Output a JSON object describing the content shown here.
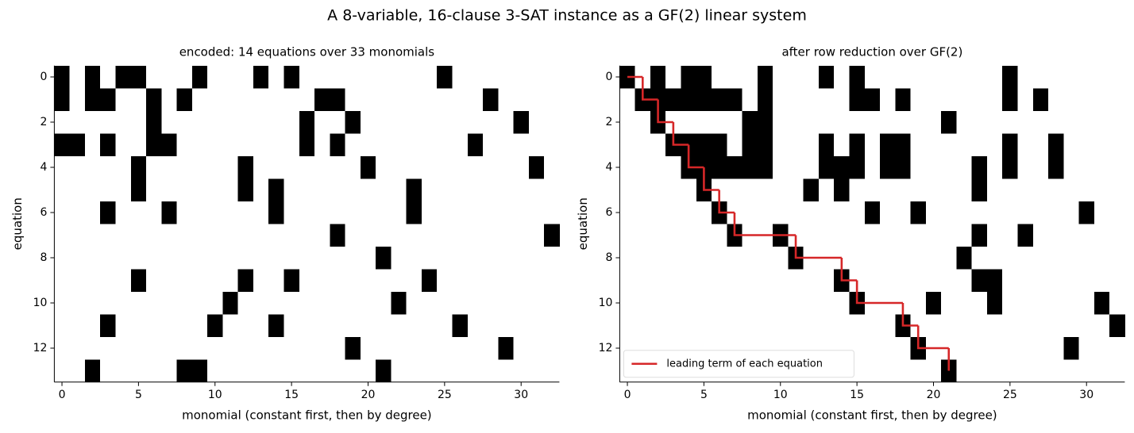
{
  "title": "A 8-variable, 16-clause 3-SAT instance as a GF(2) linear system",
  "chart_data": [
    {
      "type": "heatmap",
      "title": "encoded: 14 equations over 33 monomials",
      "xlabel": "monomial (constant first, then by degree)",
      "ylabel": "equation",
      "colors": [
        "#ffffff",
        "#000000"
      ],
      "xlim": [
        -0.5,
        32.5
      ],
      "ylim": [
        13.5,
        -0.5
      ],
      "xticks": [
        0,
        5,
        10,
        15,
        20,
        25,
        30
      ],
      "yticks": [
        0,
        2,
        4,
        6,
        8,
        10,
        12
      ],
      "z": [
        [
          1,
          0,
          1,
          0,
          1,
          1,
          0,
          0,
          0,
          1,
          0,
          0,
          0,
          1,
          0,
          1,
          0,
          0,
          0,
          0,
          0,
          0,
          0,
          0,
          0,
          1,
          0,
          0,
          0,
          0,
          0,
          0,
          0
        ],
        [
          1,
          0,
          1,
          1,
          0,
          0,
          1,
          0,
          1,
          0,
          0,
          0,
          0,
          0,
          0,
          0,
          0,
          1,
          1,
          0,
          0,
          0,
          0,
          0,
          0,
          0,
          0,
          0,
          1,
          0,
          0,
          0,
          0
        ],
        [
          0,
          0,
          0,
          0,
          0,
          0,
          1,
          0,
          0,
          0,
          0,
          0,
          0,
          0,
          0,
          0,
          1,
          0,
          0,
          1,
          0,
          0,
          0,
          0,
          0,
          0,
          0,
          0,
          0,
          0,
          1,
          0,
          0
        ],
        [
          1,
          1,
          0,
          1,
          0,
          0,
          1,
          1,
          0,
          0,
          0,
          0,
          0,
          0,
          0,
          0,
          1,
          0,
          1,
          0,
          0,
          0,
          0,
          0,
          0,
          0,
          0,
          1,
          0,
          0,
          0,
          0,
          0
        ],
        [
          0,
          0,
          0,
          0,
          0,
          1,
          0,
          0,
          0,
          0,
          0,
          0,
          1,
          0,
          0,
          0,
          0,
          0,
          0,
          0,
          1,
          0,
          0,
          0,
          0,
          0,
          0,
          0,
          0,
          0,
          0,
          1,
          0
        ],
        [
          0,
          0,
          0,
          0,
          0,
          1,
          0,
          0,
          0,
          0,
          0,
          0,
          1,
          0,
          1,
          0,
          0,
          0,
          0,
          0,
          0,
          0,
          0,
          1,
          0,
          0,
          0,
          0,
          0,
          0,
          0,
          0,
          0
        ],
        [
          0,
          0,
          0,
          1,
          0,
          0,
          0,
          1,
          0,
          0,
          0,
          0,
          0,
          0,
          1,
          0,
          0,
          0,
          0,
          0,
          0,
          0,
          0,
          1,
          0,
          0,
          0,
          0,
          0,
          0,
          0,
          0,
          0
        ],
        [
          0,
          0,
          0,
          0,
          0,
          0,
          0,
          0,
          0,
          0,
          0,
          0,
          0,
          0,
          0,
          0,
          0,
          0,
          1,
          0,
          0,
          0,
          0,
          0,
          0,
          0,
          0,
          0,
          0,
          0,
          0,
          0,
          1
        ],
        [
          0,
          0,
          0,
          0,
          0,
          0,
          0,
          0,
          0,
          0,
          0,
          0,
          0,
          0,
          0,
          0,
          0,
          0,
          0,
          0,
          0,
          1,
          0,
          0,
          0,
          0,
          0,
          0,
          0,
          0,
          0,
          0,
          0
        ],
        [
          0,
          0,
          0,
          0,
          0,
          1,
          0,
          0,
          0,
          0,
          0,
          0,
          1,
          0,
          0,
          1,
          0,
          0,
          0,
          0,
          0,
          0,
          0,
          0,
          1,
          0,
          0,
          0,
          0,
          0,
          0,
          0,
          0
        ],
        [
          0,
          0,
          0,
          0,
          0,
          0,
          0,
          0,
          0,
          0,
          0,
          1,
          0,
          0,
          0,
          0,
          0,
          0,
          0,
          0,
          0,
          0,
          1,
          0,
          0,
          0,
          0,
          0,
          0,
          0,
          0,
          0,
          0
        ],
        [
          0,
          0,
          0,
          1,
          0,
          0,
          0,
          0,
          0,
          0,
          1,
          0,
          0,
          0,
          1,
          0,
          0,
          0,
          0,
          0,
          0,
          0,
          0,
          0,
          0,
          0,
          1,
          0,
          0,
          0,
          0,
          0,
          0
        ],
        [
          0,
          0,
          0,
          0,
          0,
          0,
          0,
          0,
          0,
          0,
          0,
          0,
          0,
          0,
          0,
          0,
          0,
          0,
          0,
          1,
          0,
          0,
          0,
          0,
          0,
          0,
          0,
          0,
          0,
          1,
          0,
          0,
          0
        ],
        [
          0,
          0,
          1,
          0,
          0,
          0,
          0,
          0,
          1,
          1,
          0,
          0,
          0,
          0,
          0,
          0,
          0,
          0,
          0,
          0,
          0,
          1,
          0,
          0,
          0,
          0,
          0,
          0,
          0,
          0,
          0,
          0,
          0
        ]
      ]
    },
    {
      "type": "heatmap",
      "title": "after row reduction over GF(2)",
      "xlabel": "monomial (constant first, then by degree)",
      "ylabel": "equation",
      "colors": [
        "#ffffff",
        "#000000"
      ],
      "xlim": [
        -0.5,
        32.5
      ],
      "ylim": [
        13.5,
        -0.5
      ],
      "xticks": [
        0,
        5,
        10,
        15,
        20,
        25,
        30
      ],
      "yticks": [
        0,
        2,
        4,
        6,
        8,
        10,
        12
      ],
      "legend": "lower left",
      "z": [
        [
          1,
          0,
          1,
          0,
          1,
          1,
          0,
          0,
          0,
          1,
          0,
          0,
          0,
          1,
          0,
          1,
          0,
          0,
          0,
          0,
          0,
          0,
          0,
          0,
          0,
          1,
          0,
          0,
          0,
          0,
          0,
          0,
          0
        ],
        [
          0,
          1,
          1,
          1,
          1,
          1,
          1,
          1,
          0,
          1,
          0,
          0,
          0,
          0,
          0,
          1,
          1,
          0,
          1,
          0,
          0,
          0,
          0,
          0,
          0,
          1,
          0,
          1,
          0,
          0,
          0,
          0,
          0
        ],
        [
          0,
          0,
          1,
          0,
          0,
          0,
          0,
          0,
          1,
          1,
          0,
          0,
          0,
          0,
          0,
          0,
          0,
          0,
          0,
          0,
          0,
          1,
          0,
          0,
          0,
          0,
          0,
          0,
          0,
          0,
          0,
          0,
          0
        ],
        [
          0,
          0,
          0,
          1,
          1,
          1,
          1,
          0,
          1,
          1,
          0,
          0,
          0,
          1,
          0,
          1,
          0,
          1,
          1,
          0,
          0,
          0,
          0,
          0,
          0,
          1,
          0,
          0,
          1,
          0,
          0,
          0,
          0
        ],
        [
          0,
          0,
          0,
          0,
          1,
          1,
          1,
          1,
          1,
          1,
          0,
          0,
          0,
          1,
          1,
          1,
          0,
          1,
          1,
          0,
          0,
          0,
          0,
          1,
          0,
          1,
          0,
          0,
          1,
          0,
          0,
          0,
          0
        ],
        [
          0,
          0,
          0,
          0,
          0,
          1,
          0,
          0,
          0,
          0,
          0,
          0,
          1,
          0,
          1,
          0,
          0,
          0,
          0,
          0,
          0,
          0,
          0,
          1,
          0,
          0,
          0,
          0,
          0,
          0,
          0,
          0,
          0
        ],
        [
          0,
          0,
          0,
          0,
          0,
          0,
          1,
          0,
          0,
          0,
          0,
          0,
          0,
          0,
          0,
          0,
          1,
          0,
          0,
          1,
          0,
          0,
          0,
          0,
          0,
          0,
          0,
          0,
          0,
          0,
          1,
          0,
          0
        ],
        [
          0,
          0,
          0,
          0,
          0,
          0,
          0,
          1,
          0,
          0,
          1,
          0,
          0,
          0,
          0,
          0,
          0,
          0,
          0,
          0,
          0,
          0,
          0,
          1,
          0,
          0,
          1,
          0,
          0,
          0,
          0,
          0,
          0
        ],
        [
          0,
          0,
          0,
          0,
          0,
          0,
          0,
          0,
          0,
          0,
          0,
          1,
          0,
          0,
          0,
          0,
          0,
          0,
          0,
          0,
          0,
          0,
          1,
          0,
          0,
          0,
          0,
          0,
          0,
          0,
          0,
          0,
          0
        ],
        [
          0,
          0,
          0,
          0,
          0,
          0,
          0,
          0,
          0,
          0,
          0,
          0,
          0,
          0,
          1,
          0,
          0,
          0,
          0,
          0,
          0,
          0,
          0,
          1,
          1,
          0,
          0,
          0,
          0,
          0,
          0,
          0,
          0
        ],
        [
          0,
          0,
          0,
          0,
          0,
          0,
          0,
          0,
          0,
          0,
          0,
          0,
          0,
          0,
          0,
          1,
          0,
          0,
          0,
          0,
          1,
          0,
          0,
          0,
          1,
          0,
          0,
          0,
          0,
          0,
          0,
          1,
          0
        ],
        [
          0,
          0,
          0,
          0,
          0,
          0,
          0,
          0,
          0,
          0,
          0,
          0,
          0,
          0,
          0,
          0,
          0,
          0,
          1,
          0,
          0,
          0,
          0,
          0,
          0,
          0,
          0,
          0,
          0,
          0,
          0,
          0,
          1
        ],
        [
          0,
          0,
          0,
          0,
          0,
          0,
          0,
          0,
          0,
          0,
          0,
          0,
          0,
          0,
          0,
          0,
          0,
          0,
          0,
          1,
          0,
          0,
          0,
          0,
          0,
          0,
          0,
          0,
          0,
          1,
          0,
          0,
          0
        ],
        [
          0,
          0,
          0,
          0,
          0,
          0,
          0,
          0,
          0,
          0,
          0,
          0,
          0,
          0,
          0,
          0,
          0,
          0,
          0,
          0,
          0,
          1,
          0,
          0,
          0,
          0,
          0,
          0,
          0,
          0,
          0,
          0,
          0
        ]
      ],
      "series": [
        {
          "name": "leading term of each equation",
          "color": "#d62728",
          "values": [
            0,
            1,
            2,
            3,
            4,
            5,
            6,
            7,
            11,
            14,
            15,
            18,
            19,
            21
          ]
        }
      ]
    }
  ]
}
